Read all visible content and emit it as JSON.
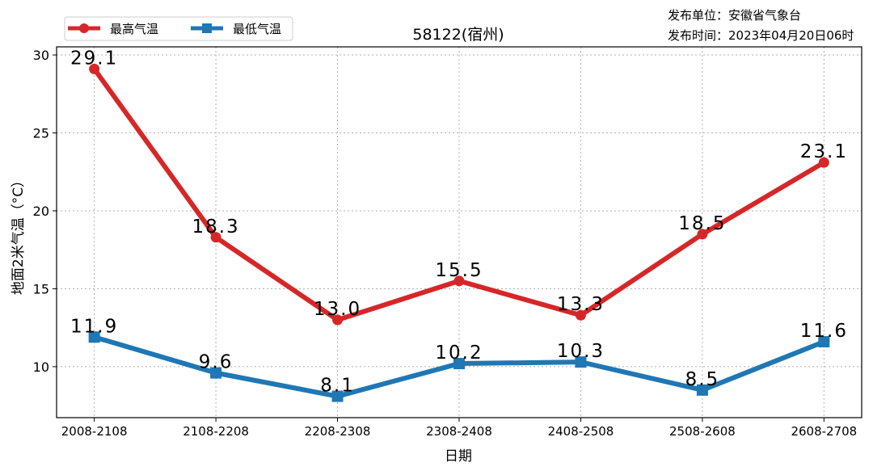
{
  "chart_data": {
    "type": "line",
    "title": "58122(宿州)",
    "publisher": "发布单位：安徽省气象台",
    "publish_time": "发布时间：2023年04月20日06时",
    "xlabel": "日期",
    "ylabel": "地面2米气温（°C）",
    "categories": [
      "2008-2108",
      "2108-2208",
      "2208-2308",
      "2308-2408",
      "2408-2508",
      "2508-2608",
      "2608-2708"
    ],
    "ylim": [
      6.73,
      30.52
    ],
    "yticks": [
      10,
      15,
      20,
      25,
      30
    ],
    "grid": true,
    "legend_position": "top-left",
    "series": [
      {
        "name": "最高气温",
        "color": "#d62728",
        "marker": "circle",
        "values": [
          29.1,
          18.3,
          13.0,
          15.5,
          13.3,
          18.5,
          23.1
        ],
        "labels": [
          "29.1",
          "18.3",
          "13.0",
          "15.5",
          "13.3",
          "18.5",
          "23.1"
        ]
      },
      {
        "name": "最低气温",
        "color": "#1f77b4",
        "marker": "square",
        "values": [
          11.9,
          9.6,
          8.1,
          10.2,
          10.3,
          8.5,
          11.6
        ],
        "labels": [
          "11.9",
          "9.6",
          "8.1",
          "10.2",
          "10.3",
          "8.5",
          "11.6"
        ]
      }
    ]
  }
}
